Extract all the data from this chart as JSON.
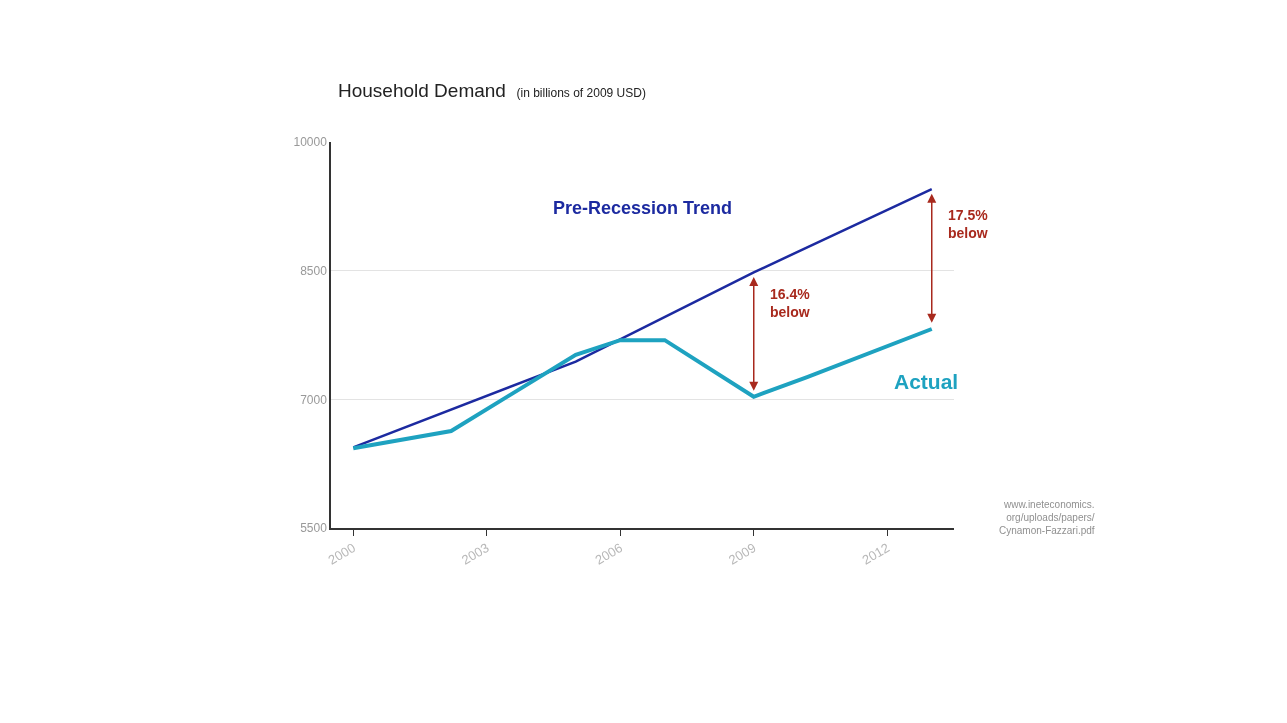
{
  "chart_data": {
    "type": "line",
    "title": "Household Demand",
    "subtitle": "(in billions of 2009 USD)",
    "xlim": [
      1999.5,
      2013.5
    ],
    "xticks": [
      2000,
      2003,
      2006,
      2009,
      2012
    ],
    "ylim": [
      5500,
      10000
    ],
    "yticks": [
      5500,
      7000,
      8500,
      10000
    ],
    "grid": "y",
    "legend": false,
    "marker": "none",
    "line_style": "solid",
    "series": [
      {
        "name": "Pre-Recession Trend",
        "color": "#1c2aa0",
        "x": [
          2000,
          2005,
          2009,
          2013
        ],
        "values": [
          6440,
          7440,
          8480,
          9450
        ]
      },
      {
        "name": "Actual",
        "color": "#1ea2c0",
        "x": [
          2000,
          2002.2,
          2005,
          2006,
          2007,
          2009,
          2010.2,
          2013
        ],
        "values": [
          6430,
          6630,
          7520,
          7690,
          7690,
          7030,
          7260,
          7820
        ]
      }
    ],
    "annotations": [
      "16.4% below",
      "17.5% below",
      "www.ineteconomics.org/uploads/papers/Cynamon-Fazzari.pdf"
    ]
  }
}
